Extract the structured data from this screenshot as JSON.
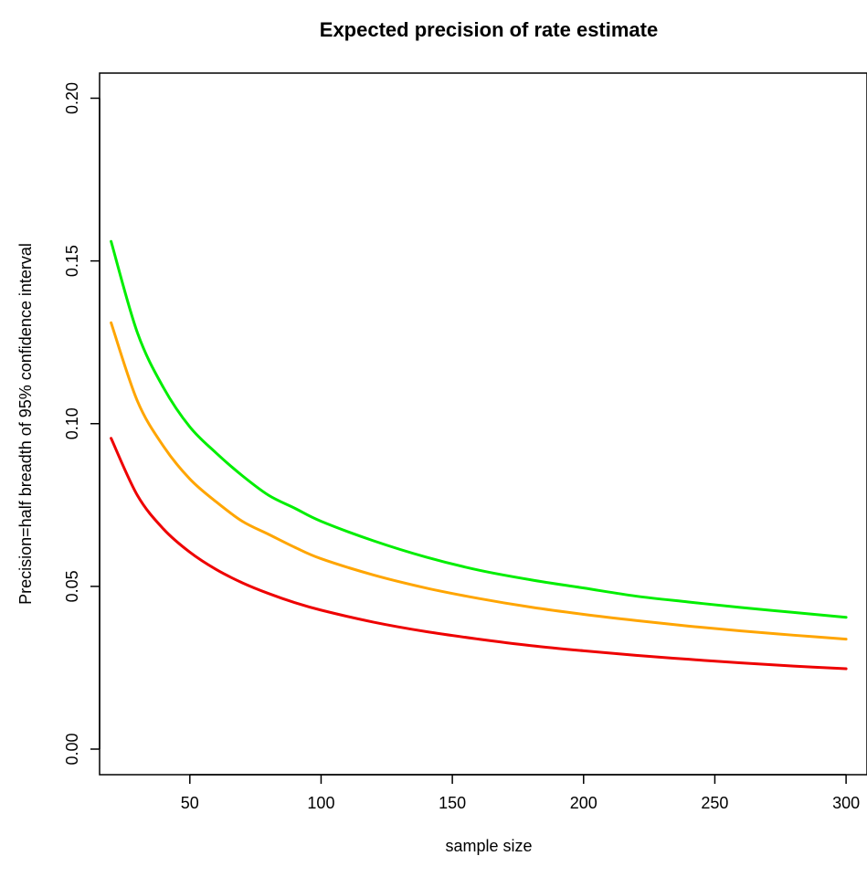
{
  "chart_data": {
    "type": "line",
    "title": "Expected precision of rate estimate",
    "xlabel": "sample size",
    "ylabel": "Precision=half breadth of 95% confidence interval",
    "xlim": [
      20,
      300
    ],
    "ylim": [
      0,
      0.2
    ],
    "x_ticks": [
      {
        "value": 50,
        "label": "50"
      },
      {
        "value": 100,
        "label": "100"
      },
      {
        "value": 150,
        "label": "150"
      },
      {
        "value": 200,
        "label": "200"
      },
      {
        "value": 250,
        "label": "250"
      },
      {
        "value": 300,
        "label": "300"
      }
    ],
    "y_ticks": [
      {
        "value": 0,
        "label": "0.00"
      },
      {
        "value": 0.05,
        "label": "0.05"
      },
      {
        "value": 0.1,
        "label": "0.10"
      },
      {
        "value": 0.15,
        "label": "0.15"
      },
      {
        "value": 0.2,
        "label": "0.20"
      }
    ],
    "grid": false,
    "legend": "none",
    "x": [
      20,
      30,
      40,
      50,
      60,
      70,
      80,
      90,
      100,
      120,
      140,
      160,
      180,
      200,
      220,
      240,
      260,
      280,
      300
    ],
    "series": [
      {
        "color": "#00ee00",
        "values": [
          0.156,
          0.128,
          0.111,
          0.099,
          0.091,
          0.084,
          0.078,
          0.074,
          0.07,
          0.064,
          0.059,
          0.055,
          0.052,
          0.0495,
          0.047,
          0.0452,
          0.0435,
          0.042,
          0.0405
        ]
      },
      {
        "color": "#ffa500",
        "values": [
          0.131,
          0.107,
          0.093,
          0.083,
          0.076,
          0.07,
          0.066,
          0.062,
          0.0585,
          0.0535,
          0.0495,
          0.0463,
          0.0436,
          0.0414,
          0.0395,
          0.0378,
          0.0363,
          0.035,
          0.0338
        ]
      },
      {
        "color": "#ee0000",
        "values": [
          0.0955,
          0.078,
          0.0676,
          0.0605,
          0.0552,
          0.0511,
          0.0478,
          0.045,
          0.0427,
          0.039,
          0.0361,
          0.0338,
          0.0318,
          0.0302,
          0.0288,
          0.0276,
          0.0265,
          0.0255,
          0.0247
        ]
      }
    ]
  }
}
